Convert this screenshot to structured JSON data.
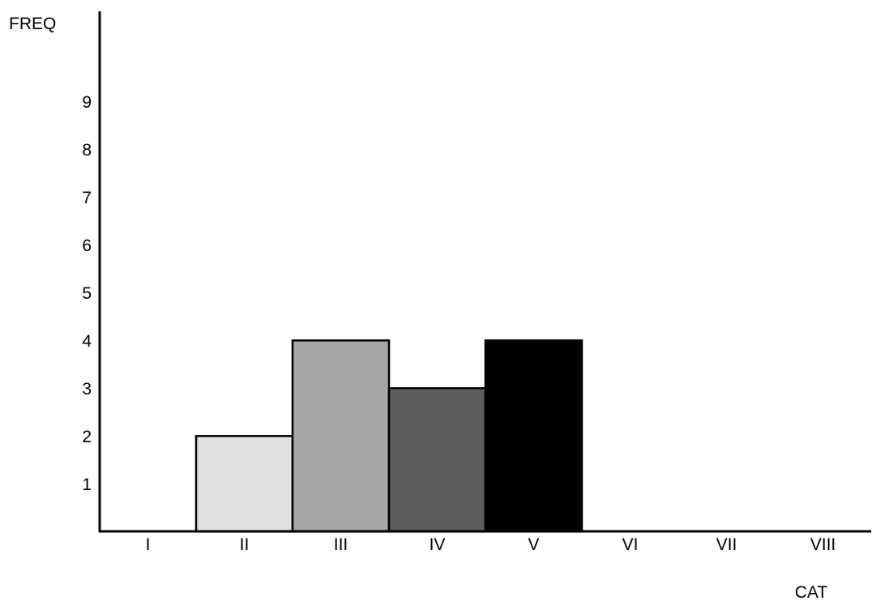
{
  "chart_data": {
    "type": "bar",
    "title": "",
    "xlabel": "CAT",
    "ylabel": "FREQ",
    "categories": [
      "I",
      "II",
      "III",
      "IV",
      "V",
      "VI",
      "VII",
      "VIII"
    ],
    "values": [
      0,
      2,
      4,
      3,
      4,
      0,
      0,
      0
    ],
    "yticks": [
      "1",
      "2",
      "3",
      "4",
      "5",
      "6",
      "7",
      "8",
      "9"
    ],
    "ylim": [
      0,
      11
    ],
    "grid": false,
    "legend": "none",
    "bar_colors": [
      "#ffffff",
      "#e0e0e0",
      "#a6a6a6",
      "#5c5c5c",
      "#000000",
      "#ffffff",
      "#ffffff",
      "#ffffff"
    ],
    "bar_edge_color": "#000000"
  }
}
